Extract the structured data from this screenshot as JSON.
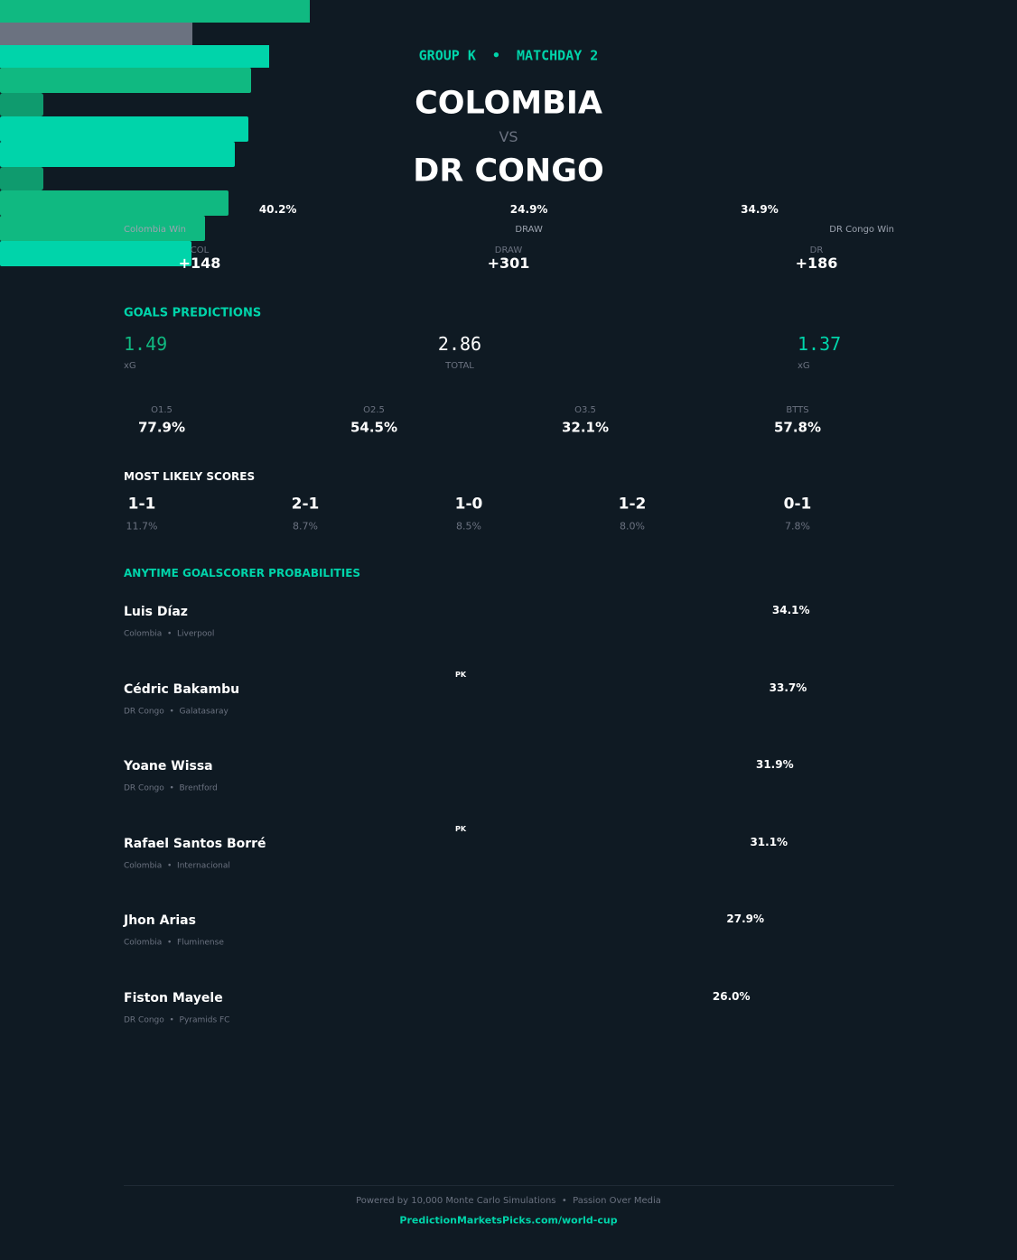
{
  "header": {
    "group": "GROUP K  •  MATCHDAY 2",
    "home": "COLOMBIA",
    "vs": "VS",
    "away": "DR CONGO"
  },
  "outcomes": [
    {
      "label": "Colombia Win",
      "value": 40.2,
      "value_label": "40.2%",
      "color": "#10b981"
    },
    {
      "label": "DRAW",
      "value": 24.9,
      "value_label": "24.9%",
      "color": "#6b7280"
    },
    {
      "label": "DR Congo Win",
      "value": 34.9,
      "value_label": "34.9%",
      "color": "#00d4aa"
    }
  ],
  "odds": [
    {
      "label": "COL",
      "value": "+148"
    },
    {
      "label": "DRAW",
      "value": "+301"
    },
    {
      "label": "DR",
      "value": "+186"
    }
  ],
  "goals": {
    "title": "GOALS PREDICTIONS",
    "home": {
      "value": "1.49",
      "label": "xG"
    },
    "total": {
      "value": "2.86",
      "label": "TOTAL"
    },
    "away": {
      "value": "1.37",
      "label": "xG"
    },
    "markets": [
      {
        "label": "O1.5",
        "value": "77.9%"
      },
      {
        "label": "O2.5",
        "value": "54.5%"
      },
      {
        "label": "O3.5",
        "value": "32.1%"
      },
      {
        "label": "BTTS",
        "value": "57.8%"
      }
    ]
  },
  "scores": {
    "title": "MOST LIKELY SCORES",
    "items": [
      {
        "score": "1-1",
        "prob": "11.7%"
      },
      {
        "score": "2-1",
        "prob": "8.7%"
      },
      {
        "score": "1-0",
        "prob": "8.5%"
      },
      {
        "score": "1-2",
        "prob": "8.0%"
      },
      {
        "score": "0-1",
        "prob": "7.8%"
      }
    ]
  },
  "scorers": {
    "title": "ANYTIME GOALSCORER PROBABILITIES",
    "players": [
      {
        "name": "Luis Díaz",
        "info": "Colombia  •  Liverpool",
        "value": 34.1,
        "value_label": "34.1%",
        "color": "#10b981"
      },
      {
        "name": "Cédric Bakambu",
        "info": "DR Congo  •  Galatasaray",
        "badge": "PK",
        "value": 33.7,
        "value_label": "33.7%",
        "color": "#00d4aa"
      },
      {
        "name": "Yoane Wissa",
        "info": "DR Congo  •  Brentford",
        "value": 31.9,
        "value_label": "31.9%",
        "color": "#00d4aa"
      },
      {
        "name": "Rafael Santos Borré",
        "info": "Colombia  •  Internacional",
        "badge": "PK",
        "value": 31.1,
        "value_label": "31.1%",
        "color": "#10b981"
      },
      {
        "name": "Jhon Arias",
        "info": "Colombia  •  Fluminense",
        "value": 27.9,
        "value_label": "27.9%",
        "color": "#10b981"
      },
      {
        "name": "Fiston Mayele",
        "info": "DR Congo  •  Pyramids FC",
        "value": 26.0,
        "value_label": "26.0%",
        "color": "#00d4aa"
      }
    ]
  },
  "footer": {
    "text": "Powered by 10,000 Monte Carlo Simulations  •  Passion Over Media",
    "link": "PredictionMarketsPicks.com/world-cup"
  }
}
